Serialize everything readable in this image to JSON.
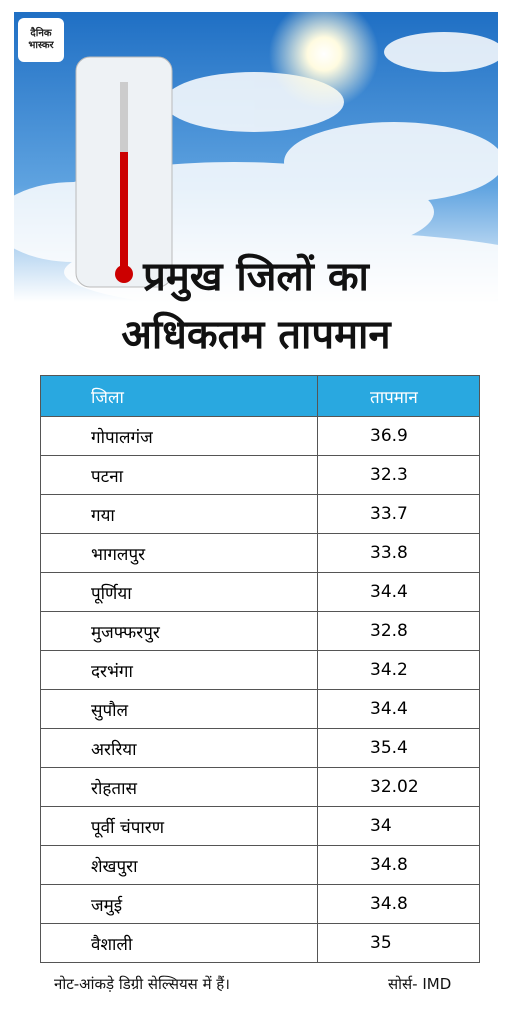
{
  "logo": "दैनिक भास्कर",
  "title": [
    "प्रमुख जिलों का",
    "अधिकतम तापमान"
  ],
  "table": {
    "header": [
      "जिला",
      "तापमान"
    ],
    "rows": [
      [
        "गोपालगंज",
        "36.9"
      ],
      [
        "पटना",
        "32.3"
      ],
      [
        "गया",
        "33.7"
      ],
      [
        "भागलपुर",
        "33.8"
      ],
      [
        "पूर्णिया",
        "34.4"
      ],
      [
        "मुजफ्फरपुर",
        "32.8"
      ],
      [
        "दरभंगा",
        "34.2"
      ],
      [
        "सुपौल",
        "34.4"
      ],
      [
        "अररिया",
        "35.4"
      ],
      [
        "रोहतास",
        "32.02"
      ],
      [
        "पूर्वी चंपारण",
        "34"
      ],
      [
        "शेखपुरा",
        "34.8"
      ],
      [
        "जमुई",
        "34.8"
      ],
      [
        "वैशाली",
        "35"
      ]
    ]
  },
  "footer": {
    "note": "नोट-आंकड़े डिग्री सेल्सियस में हैं।",
    "source": "सोर्स- IMD"
  }
}
